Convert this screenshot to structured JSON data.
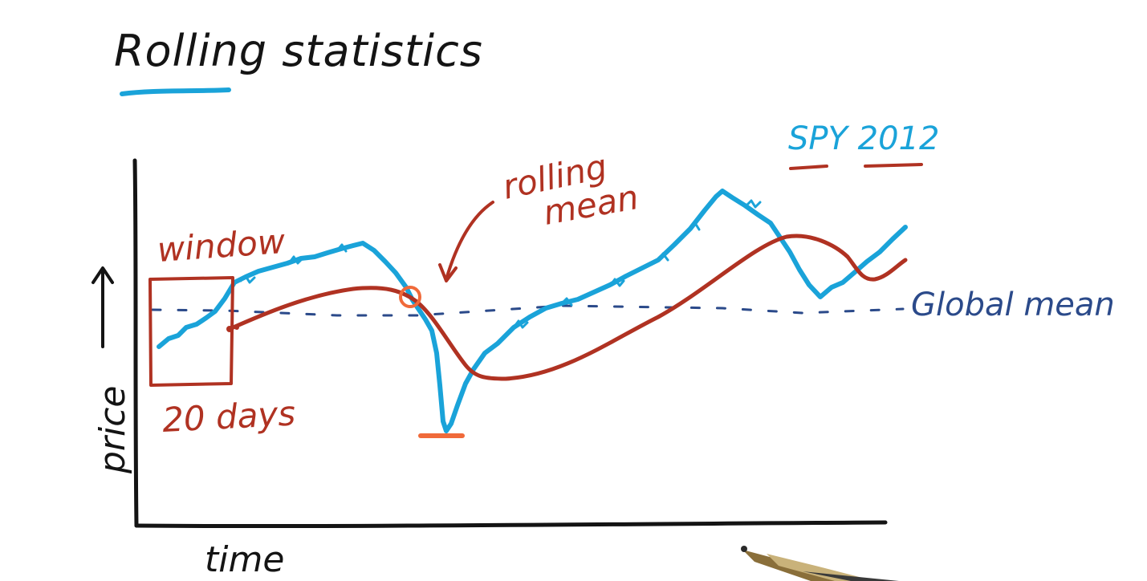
{
  "title": "Rolling statistics",
  "labels": {
    "window": "window",
    "window_size": "20 days",
    "rolling_mean": [
      "rolling",
      "mean"
    ],
    "series": "SPY 2012",
    "global_mean": "Global mean",
    "x_axis": "time",
    "y_axis": "price"
  },
  "colors": {
    "ink": "#141414",
    "price_line": "#1aa3d9",
    "rolling_mean": "#b03222",
    "global_mean": "#2b4a8a",
    "highlight": "#f06a3a"
  },
  "icons": [
    "up-arrow-icon",
    "curved-arrow-icon",
    "pen-icon"
  ]
}
